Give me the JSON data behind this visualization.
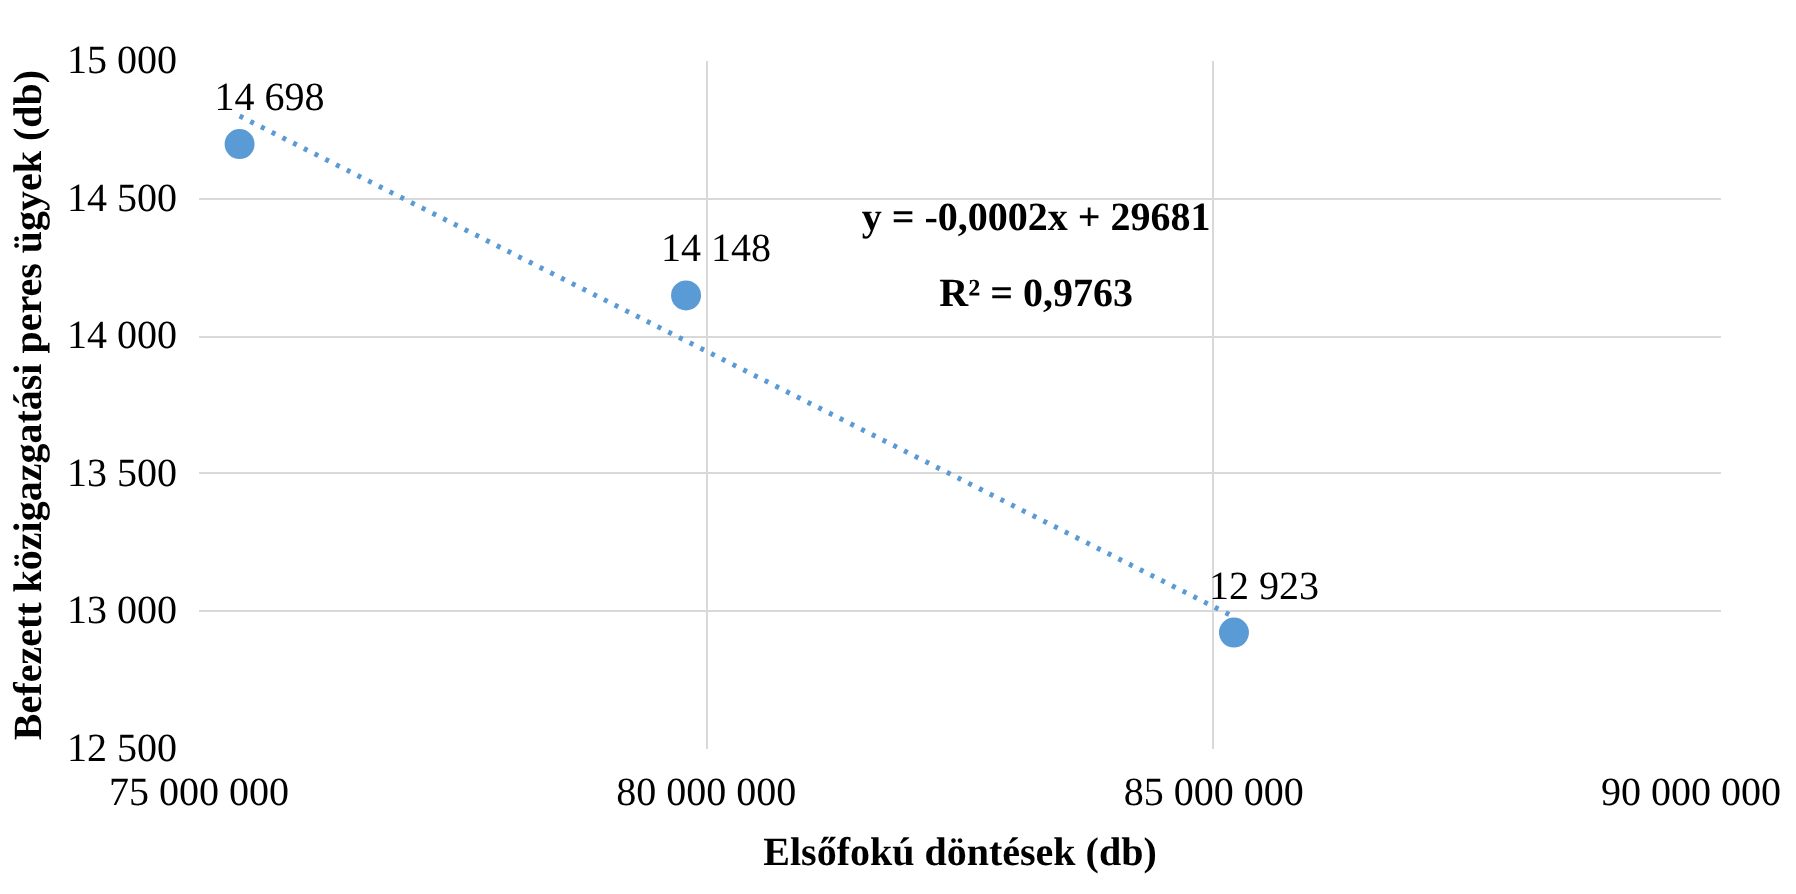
{
  "chart_data": {
    "type": "scatter",
    "xlabel": "Elsőfokú döntések (db)",
    "ylabel": "Befezett közigazgatási peres ügyek (db)",
    "x": [
      75400000,
      79800000,
      85200000
    ],
    "series": [
      {
        "color": "#5b9bd5",
        "values": [
          14698,
          14148,
          12923
        ],
        "value_labels": [
          "14 698",
          "14 148",
          "12 923"
        ],
        "marker": "circle"
      },
      {
        "type": "line",
        "color": "#5b9bd5",
        "x": [
          75400000,
          85200000
        ],
        "values": [
          14800,
          12980
        ],
        "line_style": "dotted",
        "marker": "none"
      }
    ],
    "annotations": [
      "y = -0,0002x + 29681",
      "R² = 0,9763"
    ],
    "xlim": [
      75000000,
      90000000
    ],
    "xticks": [
      {
        "value": 75000000,
        "label": "75 000 000"
      },
      {
        "value": 80000000,
        "label": "80 000 000"
      },
      {
        "value": 85000000,
        "label": "85 000 000"
      },
      {
        "value": 90000000,
        "label": "90 000 000"
      }
    ],
    "ylim": [
      12500,
      15000
    ],
    "yticks": [
      {
        "value": 12500,
        "label": "12 500"
      },
      {
        "value": 13000,
        "label": "13 000"
      },
      {
        "value": 13500,
        "label": "13 500"
      },
      {
        "value": 14000,
        "label": "14 000"
      },
      {
        "value": 14500,
        "label": "14 500"
      },
      {
        "value": 15000,
        "label": "15 000"
      }
    ],
    "grid": true
  }
}
